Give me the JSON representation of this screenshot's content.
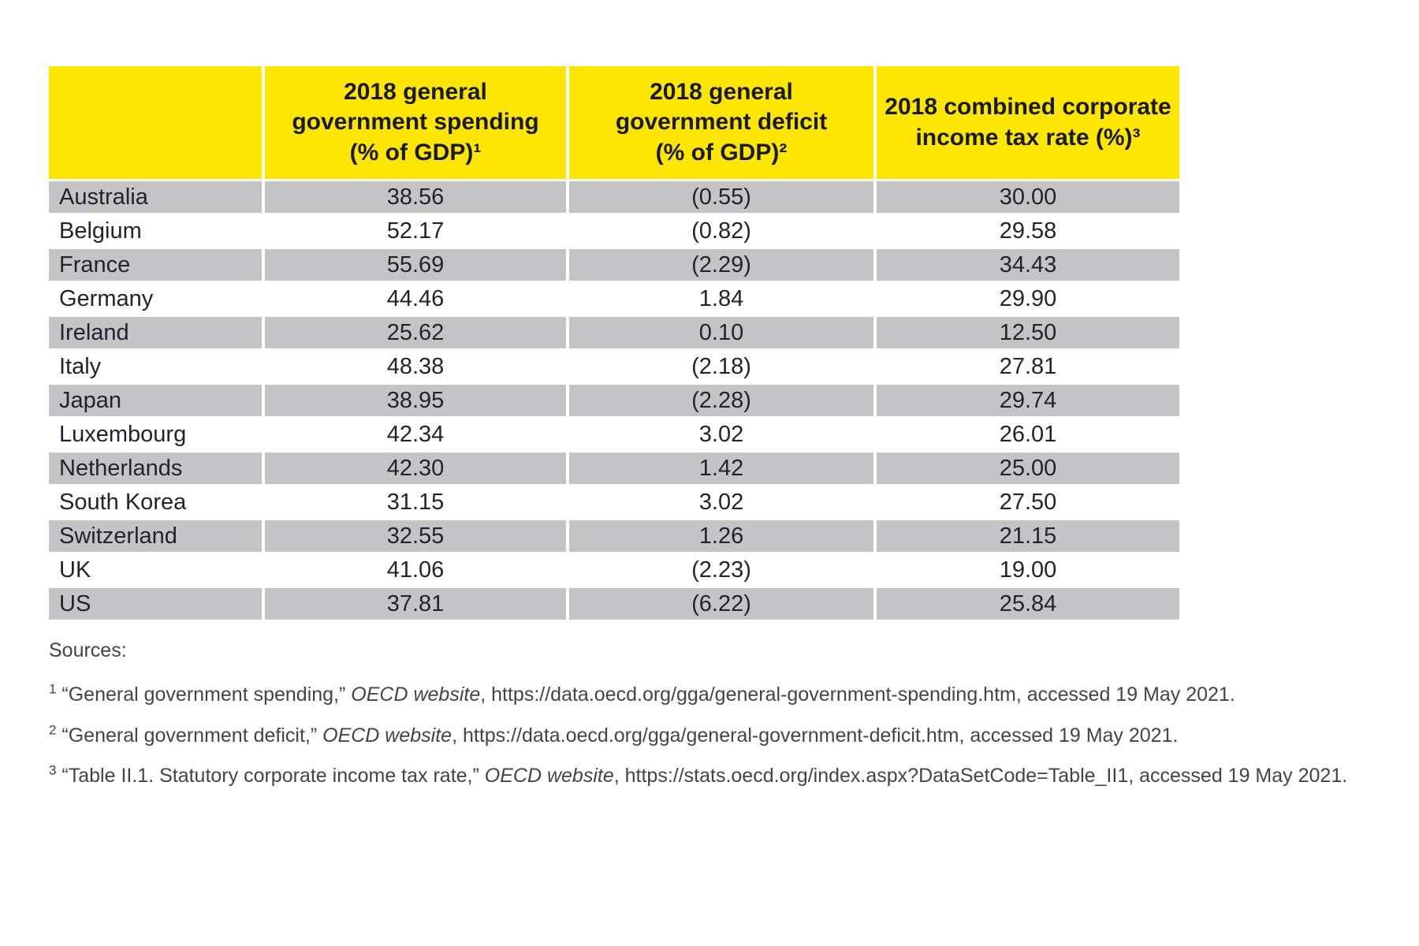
{
  "table": {
    "columns": [
      {
        "label": ""
      },
      {
        "label": "2018 general\ngovernment spending\n(% of GDP)¹"
      },
      {
        "label": "2018 general\ngovernment deficit\n(% of GDP)²"
      },
      {
        "label": "2018 combined corporate\nincome tax rate (%)³"
      }
    ],
    "rows": [
      {
        "country": "Australia",
        "spending": "38.56",
        "deficit": "(0.55)",
        "tax_rate": "30.00"
      },
      {
        "country": "Belgium",
        "spending": "52.17",
        "deficit": "(0.82)",
        "tax_rate": "29.58"
      },
      {
        "country": "France",
        "spending": "55.69",
        "deficit": "(2.29)",
        "tax_rate": "34.43"
      },
      {
        "country": "Germany",
        "spending": "44.46",
        "deficit": "1.84",
        "tax_rate": "29.90"
      },
      {
        "country": "Ireland",
        "spending": "25.62",
        "deficit": "0.10",
        "tax_rate": "12.50"
      },
      {
        "country": "Italy",
        "spending": "48.38",
        "deficit": "(2.18)",
        "tax_rate": "27.81"
      },
      {
        "country": "Japan",
        "spending": "38.95",
        "deficit": "(2.28)",
        "tax_rate": "29.74"
      },
      {
        "country": "Luxembourg",
        "spending": "42.34",
        "deficit": "3.02",
        "tax_rate": "26.01"
      },
      {
        "country": "Netherlands",
        "spending": "42.30",
        "deficit": "1.42",
        "tax_rate": "25.00"
      },
      {
        "country": "South Korea",
        "spending": "31.15",
        "deficit": "3.02",
        "tax_rate": "27.50"
      },
      {
        "country": "Switzerland",
        "spending": "32.55",
        "deficit": "1.26",
        "tax_rate": "21.15"
      },
      {
        "country": "UK",
        "spending": "41.06",
        "deficit": "(2.23)",
        "tax_rate": "19.00"
      },
      {
        "country": "US",
        "spending": "37.81",
        "deficit": "(6.22)",
        "tax_rate": "25.84"
      }
    ]
  },
  "sources": {
    "label": "Sources:",
    "footnotes": [
      {
        "sup": "1",
        "before": " “General government spending,” ",
        "italic": "OECD website",
        "after": ", https://data.oecd.org/gga/general-government-spending.htm, accessed 19 May 2021."
      },
      {
        "sup": "2",
        "before": " “General government deficit,” ",
        "italic": "OECD website",
        "after": ", https://data.oecd.org/gga/general-government-deficit.htm, accessed 19 May 2021."
      },
      {
        "sup": "3",
        "before": " “Table II.1. Statutory corporate income tax rate,” ",
        "italic": "OECD website",
        "after": ", https://stats.oecd.org/index.aspx?DataSetCode=Table_II1, accessed 19 May 2021."
      }
    ]
  },
  "colors": {
    "header_bg": "#FFE600",
    "alt_row_bg": "#C4C4C6",
    "header_text": "#1A1A24",
    "body_text": "#23232E",
    "footnote_text": "#43434B"
  }
}
